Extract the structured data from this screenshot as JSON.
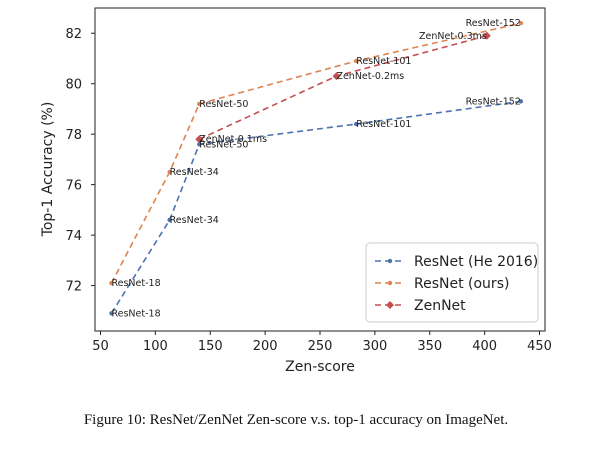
{
  "chart_data": {
    "type": "line",
    "xlabel": "Zen-score",
    "ylabel": "Top-1 Accuracy (%)",
    "xlim": [
      45,
      455
    ],
    "ylim": [
      70.2,
      83.0
    ],
    "xticks": [
      50,
      100,
      150,
      200,
      250,
      300,
      350,
      400,
      450
    ],
    "yticks": [
      72,
      74,
      76,
      78,
      80,
      82
    ],
    "grid": false,
    "legend_position": "lower-right",
    "series": [
      {
        "name": "ResNet (He 2016)",
        "color": "#4c72b0",
        "marker": "dot",
        "points": [
          {
            "x": 60,
            "y": 70.9,
            "label": "ResNet-18"
          },
          {
            "x": 113,
            "y": 74.6,
            "label": "ResNet-34"
          },
          {
            "x": 140,
            "y": 77.6,
            "label": "ResNet-50"
          },
          {
            "x": 283,
            "y": 78.4,
            "label": "ResNet-101"
          },
          {
            "x": 433,
            "y": 79.3,
            "label": "ResNet-152"
          }
        ]
      },
      {
        "name": "ResNet (ours)",
        "color": "#dd8452",
        "marker": "dot",
        "points": [
          {
            "x": 60,
            "y": 72.1,
            "label": "ResNet-18"
          },
          {
            "x": 113,
            "y": 76.5,
            "label": "ResNet-34"
          },
          {
            "x": 140,
            "y": 79.2,
            "label": "ResNet-50"
          },
          {
            "x": 283,
            "y": 80.9,
            "label": "ResNet-101"
          },
          {
            "x": 433,
            "y": 82.4,
            "label": "ResNet-152"
          }
        ]
      },
      {
        "name": "ZenNet",
        "color": "#c44e52",
        "marker": "diamond",
        "points": [
          {
            "x": 140,
            "y": 77.8,
            "label": "ZenNet-0.1ms"
          },
          {
            "x": 265,
            "y": 80.3,
            "label": "ZenNet-0.2ms"
          },
          {
            "x": 402,
            "y": 81.9,
            "label": "ZenNet-0.3ms"
          }
        ]
      }
    ]
  },
  "caption": "Figure 10: ResNet/ZenNet Zen-score v.s. top-1 accuracy on ImageNet."
}
